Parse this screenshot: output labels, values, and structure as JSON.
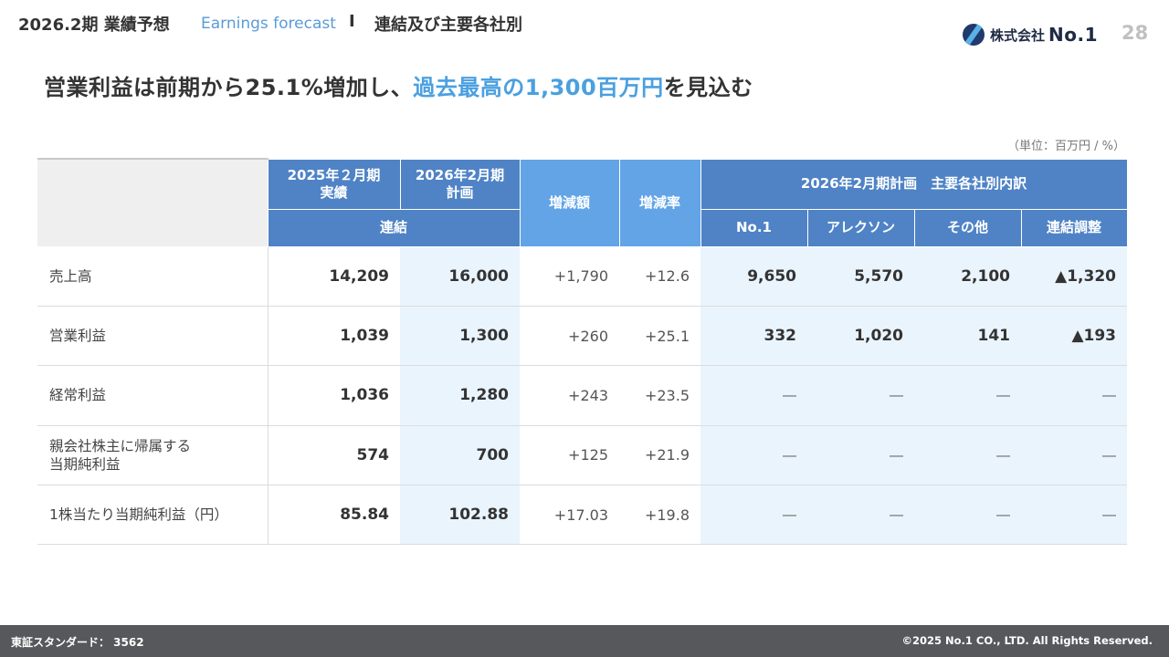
{
  "header": {
    "period": "2026.2期 業績予想",
    "english": "Earnings forecast",
    "separator": "I",
    "section": "連結及び主要各社別",
    "logo_corp": "株式会社",
    "logo_name": "No.1",
    "page_number": "28"
  },
  "headline": {
    "part1": "営業利益は前期から25.1%増加し、",
    "highlight": "過去最高の1,300百万円",
    "part2": "を見込む"
  },
  "unit": "（単位：百万円 / %）",
  "table": {
    "headers": {
      "actual": "2025年２月期\n実績",
      "plan": "2026年2月期\n計画",
      "consolidated": "連結",
      "change_amount": "増減額",
      "change_rate": "増減率",
      "breakdown_title": "2026年2月期計画　主要各社別内訳",
      "companies": [
        "No.1",
        "アレクソン",
        "その他",
        "連結調整"
      ]
    },
    "rows": [
      {
        "label": "売上高",
        "actual": "14,209",
        "plan": "16,000",
        "change": "+1,790",
        "rate": "+12.6",
        "breakdown": [
          "9,650",
          "5,570",
          "2,100",
          "▲1,320"
        ]
      },
      {
        "label": "営業利益",
        "actual": "1,039",
        "plan": "1,300",
        "change": "+260",
        "rate": "+25.1",
        "breakdown": [
          "332",
          "1,020",
          "141",
          "▲193"
        ]
      },
      {
        "label": "経常利益",
        "actual": "1,036",
        "plan": "1,280",
        "change": "+243",
        "rate": "+23.5",
        "breakdown": [
          "―",
          "―",
          "―",
          "―"
        ]
      },
      {
        "label": "親会社株主に帰属する\n当期純利益",
        "actual": "574",
        "plan": "700",
        "change": "+125",
        "rate": "+21.9",
        "breakdown": [
          "―",
          "―",
          "―",
          "―"
        ]
      },
      {
        "label": "1株当たり当期純利益（円）",
        "actual": "85.84",
        "plan": "102.88",
        "change": "+17.03",
        "rate": "+19.8",
        "breakdown": [
          "―",
          "―",
          "―",
          "―"
        ]
      }
    ]
  },
  "footer": {
    "exchange": "東証スタンダード： 3562",
    "copyright": "©2025 No.1 CO., LTD. All Rights Reserved."
  }
}
